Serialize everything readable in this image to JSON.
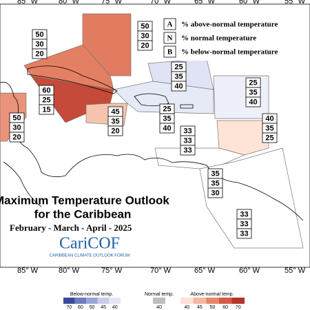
{
  "longitude_labels": [
    "85° W",
    "80° W",
    "75° W",
    "70° W",
    "65° W",
    "60° W",
    "55° W"
  ],
  "legend": {
    "items": [
      {
        "key": "A",
        "text": "% above-normal temperature"
      },
      {
        "key": "N",
        "text": "% normal temperature"
      },
      {
        "key": "B",
        "text": "% below-normal temperature"
      }
    ]
  },
  "regions": [
    {
      "values": [
        50,
        30,
        20
      ]
    },
    {
      "values": [
        50,
        30,
        20
      ]
    },
    {
      "values": [
        60,
        25,
        15
      ]
    },
    {
      "values": [
        50,
        30,
        20
      ]
    },
    {
      "values": [
        45,
        35,
        20
      ]
    },
    {
      "values": [
        25,
        35,
        40
      ]
    },
    {
      "values": [
        25,
        35,
        40
      ]
    },
    {
      "values": [
        25,
        35,
        40
      ]
    },
    {
      "values": [
        40,
        35,
        25
      ]
    },
    {
      "values": [
        33,
        33,
        33
      ]
    },
    {
      "values": [
        35,
        35,
        30
      ]
    },
    {
      "values": [
        33,
        33,
        33
      ]
    }
  ],
  "title": {
    "line1": "Maximum Temperature Outlook",
    "line2": "for the Caribbean",
    "period": "February - March - April - 2025"
  },
  "logo": {
    "name": "CariCOF",
    "subtitle": "CARIBBEAN CLIMATE OUTLOOK FORUM"
  },
  "colorbar": {
    "below": {
      "label": "Below-normal temp.",
      "ticks": [
        70,
        60,
        50,
        45,
        40
      ]
    },
    "normal": {
      "label": "Normal temp.",
      "ticks": [
        40
      ]
    },
    "above": {
      "label": "Above-normal temp.",
      "ticks": [
        40,
        45,
        50,
        60,
        70
      ]
    }
  }
}
